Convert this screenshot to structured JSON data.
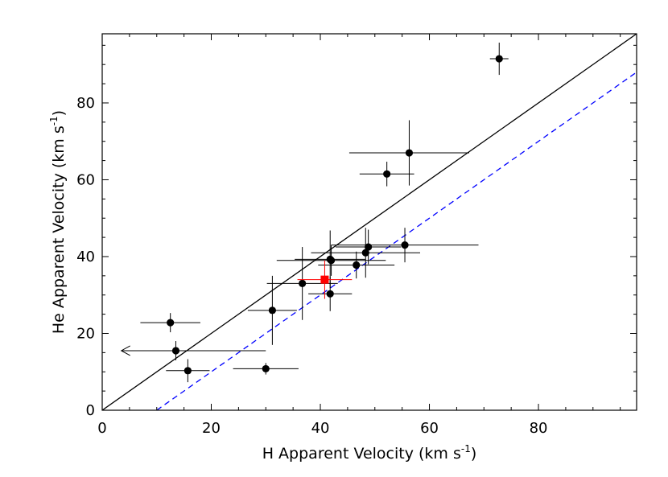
{
  "chart_data": {
    "type": "scatter",
    "xlabel": "H Apparent Velocity (km s",
    "xlabel_sup": "-1",
    "xlabel_end": ")",
    "ylabel": "He Apparent Velocity (km s",
    "ylabel_sup": "-1",
    "ylabel_end": ")",
    "xlim": [
      0,
      98
    ],
    "ylim": [
      0,
      98
    ],
    "xticks": [
      0,
      20,
      40,
      60,
      80
    ],
    "yticks": [
      0,
      20,
      40,
      60,
      80
    ],
    "xtick_labels": [
      "0",
      "20",
      "40",
      "60",
      "80"
    ],
    "ytick_labels": [
      "0",
      "20",
      "40",
      "60",
      "80"
    ],
    "grid": false,
    "colors": {
      "points": "#000000",
      "highlight": "#ff0000",
      "dashed_line": "#0000ff",
      "one_to_one": "#000000"
    },
    "lines": [
      {
        "style": "solid",
        "color": "#000000",
        "x": [
          0,
          98
        ],
        "y": [
          0,
          98
        ]
      },
      {
        "style": "dashed",
        "color": "#0000ff",
        "x": [
          10,
          98
        ],
        "y": [
          0,
          88
        ]
      }
    ],
    "points": [
      {
        "x": 72.8,
        "y": 91.5,
        "xerr": 1.7,
        "yerr": 4.2
      },
      {
        "x": 56.3,
        "y": 67.0,
        "xerr": 11.0,
        "yerr": 8.5
      },
      {
        "x": 52.2,
        "y": 61.5,
        "xerr": 5.0,
        "yerr": 3.2
      },
      {
        "x": 55.5,
        "y": 43.0,
        "xerr": 13.5,
        "yerr": 4.5
      },
      {
        "x": 48.8,
        "y": 42.5,
        "xerr": 6.0,
        "yerr": 4.5
      },
      {
        "x": 48.3,
        "y": 41.0,
        "xerr": 10.0,
        "yerr": 6.5
      },
      {
        "x": 46.6,
        "y": 37.8,
        "xerr": 7.0,
        "yerr": 3.5
      },
      {
        "x": 41.8,
        "y": 39.3,
        "xerr": 6.5,
        "yerr": 7.5
      },
      {
        "x": 42.0,
        "y": 39.0,
        "xerr": 10.0,
        "yerr": 4.0
      },
      {
        "x": 36.7,
        "y": 33.0,
        "xerr": 6.5,
        "yerr": 9.5
      },
      {
        "x": 41.8,
        "y": 30.3,
        "xerr": 4.0,
        "yerr": 4.5
      },
      {
        "x": 31.2,
        "y": 26.0,
        "xerr": 4.5,
        "yerr": 9.0
      },
      {
        "x": 30.0,
        "y": 10.8,
        "xerr": 6.0,
        "yerr": 1.5
      },
      {
        "x": 12.5,
        "y": 22.8,
        "xerr": 5.5,
        "yerr": 2.5
      },
      {
        "x": 15.7,
        "y": 10.3,
        "xerr": 4.0,
        "yerr": 3.0
      }
    ],
    "highlight_points": [
      {
        "x": 40.8,
        "y": 34.0,
        "xerr": 5.0,
        "yerr": 5.0,
        "color": "#ff0000"
      }
    ],
    "upper_limits": [
      {
        "x": 13.5,
        "y": 15.5,
        "x_from": 30,
        "x_to": 3.5
      }
    ]
  }
}
